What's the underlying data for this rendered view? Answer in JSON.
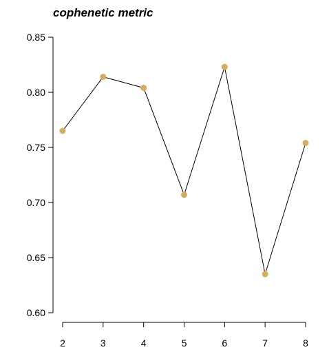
{
  "chart_data": {
    "type": "line",
    "title": "cophenetic metric",
    "xlabel": "",
    "ylabel": "",
    "x": [
      2,
      3,
      4,
      5,
      6,
      7,
      8
    ],
    "series": [
      {
        "values": [
          0.765,
          0.814,
          0.804,
          0.707,
          0.823,
          0.635,
          0.754
        ]
      }
    ],
    "xlim": [
      2,
      8
    ],
    "ylim": [
      0.6,
      0.85
    ],
    "x_ticks": [
      2,
      3,
      4,
      5,
      6,
      7,
      8
    ],
    "y_ticks": [
      "0.60",
      "0.65",
      "0.70",
      "0.75",
      "0.80",
      "0.85"
    ],
    "grid": false,
    "legend": "none",
    "colors": {
      "line": "#000000",
      "marker": "#d4ad5e"
    }
  }
}
